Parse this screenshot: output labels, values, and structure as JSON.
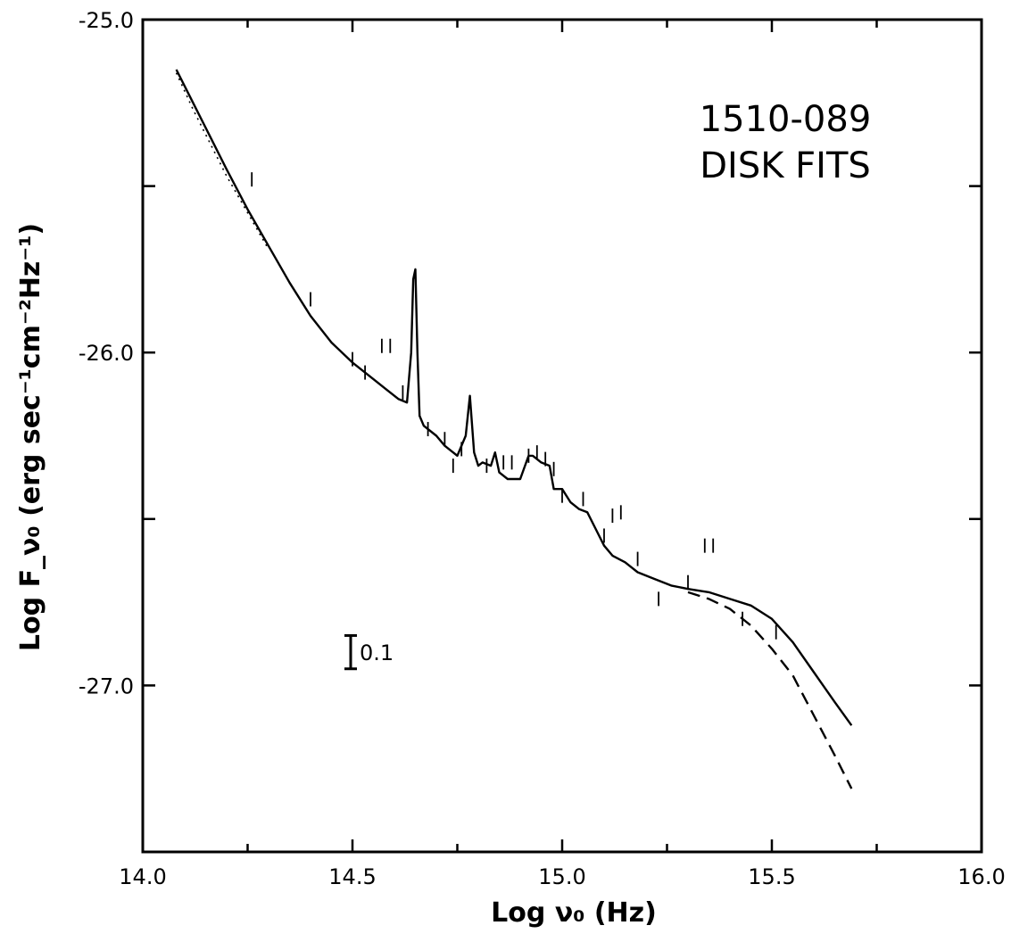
{
  "chart_data": {
    "type": "line",
    "title": "",
    "annotation_lines": [
      "1510-089",
      "DISK FITS"
    ],
    "xlabel": "Log ν₀ (Hz)",
    "ylabel": "Log F_ν₀ (erg sec⁻¹cm⁻²Hz⁻¹)",
    "xlim": [
      14.0,
      16.0
    ],
    "ylim": [
      -27.5,
      -25.0
    ],
    "x_ticks": [
      14.0,
      14.5,
      15.0,
      15.5,
      16.0
    ],
    "x_tick_labels": [
      "14.0",
      "14.5",
      "15.0",
      "15.5",
      "16.0"
    ],
    "y_ticks": [
      -25.0,
      -26.0,
      -27.0
    ],
    "y_tick_labels": [
      "-25.0",
      "-26.0",
      "-27.0"
    ],
    "grid": false,
    "error_bar_scale": {
      "label": "0.1",
      "x": 14.5,
      "size": 0.1,
      "y": -26.9
    },
    "series": [
      {
        "style": "solid",
        "x": [
          14.08,
          14.12,
          14.16,
          14.2,
          14.25,
          14.3,
          14.35,
          14.4,
          14.45,
          14.5,
          14.55,
          14.58,
          14.61,
          14.63,
          14.64,
          14.645,
          14.65,
          14.655,
          14.66,
          14.67,
          14.7,
          14.72,
          14.75,
          14.77,
          14.78,
          14.79,
          14.8,
          14.81,
          14.83,
          14.84,
          14.85,
          14.87,
          14.9,
          14.92,
          14.93,
          14.95,
          14.97,
          14.98,
          15.0,
          15.02,
          15.04,
          15.06,
          15.08,
          15.1,
          15.12,
          15.15,
          15.18,
          15.22,
          15.26,
          15.3,
          15.35,
          15.4,
          15.45,
          15.5,
          15.55,
          15.6,
          15.65,
          15.69
        ],
        "y": [
          -25.15,
          -25.25,
          -25.35,
          -25.45,
          -25.57,
          -25.68,
          -25.79,
          -25.89,
          -25.97,
          -26.03,
          -26.08,
          -26.11,
          -26.14,
          -26.15,
          -26.0,
          -25.78,
          -25.75,
          -26.0,
          -26.19,
          -26.22,
          -26.25,
          -26.28,
          -26.31,
          -26.25,
          -26.13,
          -26.3,
          -26.34,
          -26.33,
          -26.34,
          -26.3,
          -26.36,
          -26.38,
          -26.38,
          -26.31,
          -26.31,
          -26.33,
          -26.34,
          -26.41,
          -26.41,
          -26.45,
          -26.47,
          -26.48,
          -26.53,
          -26.58,
          -26.61,
          -26.63,
          -26.66,
          -26.68,
          -26.7,
          -26.71,
          -26.72,
          -26.74,
          -26.76,
          -26.8,
          -26.87,
          -26.96,
          -27.05,
          -27.12
        ]
      },
      {
        "style": "dashed",
        "x": [
          15.3,
          15.35,
          15.4,
          15.45,
          15.5,
          15.55,
          15.6,
          15.65,
          15.69
        ],
        "y": [
          -26.72,
          -26.74,
          -26.77,
          -26.82,
          -26.89,
          -26.97,
          -27.09,
          -27.21,
          -27.31
        ]
      },
      {
        "style": "dotted",
        "x": [
          14.08,
          14.12,
          14.16,
          14.2,
          14.25,
          14.3
        ],
        "y": [
          -25.16,
          -25.27,
          -25.37,
          -25.47,
          -25.58,
          -25.69
        ]
      }
    ],
    "data_points": {
      "x": [
        14.26,
        14.4,
        14.5,
        14.53,
        14.57,
        14.59,
        14.62,
        14.68,
        14.72,
        14.74,
        14.76,
        14.82,
        14.86,
        14.88,
        14.92,
        14.94,
        14.96,
        14.98,
        15.0,
        15.05,
        15.1,
        15.12,
        15.14,
        15.18,
        15.23,
        15.3,
        15.34,
        15.36,
        15.43,
        15.51
      ],
      "y": [
        -25.48,
        -25.84,
        -26.02,
        -26.06,
        -25.98,
        -25.98,
        -26.12,
        -26.23,
        -26.26,
        -26.34,
        -26.29,
        -26.34,
        -26.33,
        -26.33,
        -26.31,
        -26.3,
        -26.32,
        -26.35,
        -26.43,
        -26.44,
        -26.55,
        -26.49,
        -26.48,
        -26.62,
        -26.74,
        -26.69,
        -26.58,
        -26.58,
        -26.8,
        -26.84
      ]
    }
  }
}
